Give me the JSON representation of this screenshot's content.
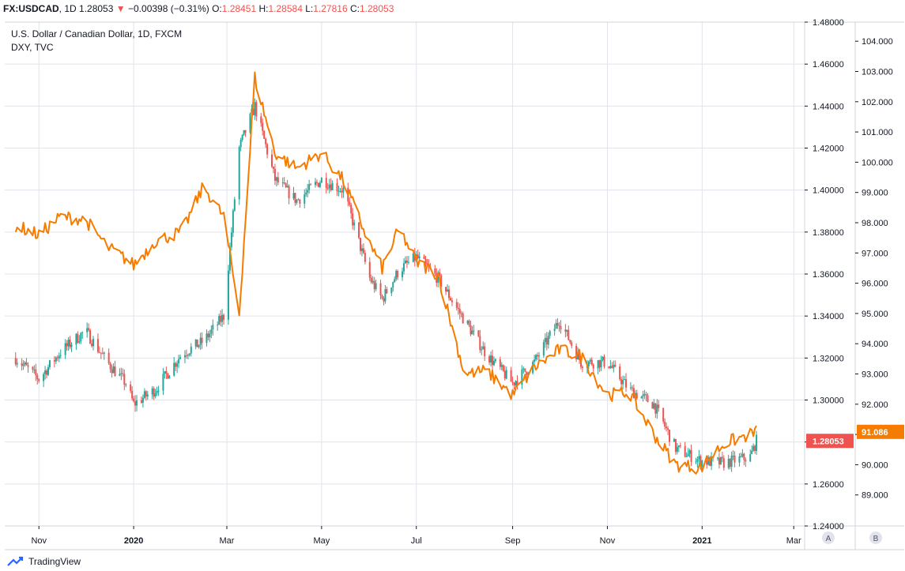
{
  "header": {
    "symbol": "FX:USDCAD",
    "interval": "1D",
    "last": "1.28053",
    "change": "−0.00398 (−0.31%)",
    "o_label": "O:",
    "o_value": "1.28451",
    "h_label": "H:",
    "h_value": "1.28584",
    "l_label": "L:",
    "l_value": "1.27816",
    "c_label": "C:",
    "c_value": "1.28053",
    "down_arrow": "▼"
  },
  "legend": {
    "main": "U.S. Dollar / Canadian Dollar, 1D, FXCM",
    "compare": "DXY, TVC"
  },
  "brand": "TradingView",
  "price_tags": {
    "usdcad": "1.28053",
    "dxy": "91.086"
  },
  "scale_buttons": {
    "a": "A",
    "b": "B"
  },
  "colors": {
    "up": "#26a69a",
    "down": "#ef5350",
    "dxy": "#f57c00",
    "grid": "#e0e3eb",
    "tag_usdcad": "#ef5350",
    "tag_dxy": "#f57c00"
  },
  "chart_data": {
    "type": "line",
    "x_ticks": [
      "Nov",
      "2020",
      "Mar",
      "May",
      "Jul",
      "Sep",
      "Nov",
      "2021",
      "Mar"
    ],
    "y_left_ticks": [
      "1.48000",
      "1.46000",
      "1.44000",
      "1.42000",
      "1.40000",
      "1.38000",
      "1.36000",
      "1.34000",
      "1.32000",
      "1.30000",
      "1.28000",
      "1.26000",
      "1.24000"
    ],
    "y_right_ticks": [
      "104.000",
      "103.000",
      "102.000",
      "101.000",
      "100.000",
      "99.000",
      "98.000",
      "97.000",
      "96.000",
      "95.000",
      "94.000",
      "93.000",
      "92.000",
      "91.000",
      "90.000",
      "89.000"
    ],
    "y_left_range": [
      1.24,
      1.48
    ],
    "y_right_range": [
      88.0,
      104.0
    ],
    "grid": true,
    "series": [
      {
        "name": "U.S. Dollar / Canadian Dollar, 1D, FXCM",
        "style": "candles",
        "axis": "left",
        "x": [
          "2019-10-17",
          "2019-11-01",
          "2019-11-15",
          "2019-12-01",
          "2019-12-15",
          "2019-12-27",
          "2020-01-01",
          "2020-01-15",
          "2020-02-01",
          "2020-02-15",
          "2020-02-28",
          "2020-03-09",
          "2020-03-19",
          "2020-04-01",
          "2020-04-15",
          "2020-05-01",
          "2020-05-15",
          "2020-06-01",
          "2020-06-09",
          "2020-06-20",
          "2020-07-01",
          "2020-07-15",
          "2020-08-01",
          "2020-08-15",
          "2020-09-01",
          "2020-09-15",
          "2020-10-01",
          "2020-10-15",
          "2020-11-01",
          "2020-11-15",
          "2020-12-01",
          "2020-12-15",
          "2020-12-31",
          "2021-01-15",
          "2021-02-01",
          "2021-02-05"
        ],
        "values": [
          1.32,
          1.31,
          1.323,
          1.333,
          1.318,
          1.308,
          1.298,
          1.305,
          1.322,
          1.328,
          1.34,
          1.42,
          1.44,
          1.405,
          1.395,
          1.405,
          1.4,
          1.358,
          1.348,
          1.362,
          1.368,
          1.358,
          1.338,
          1.322,
          1.308,
          1.318,
          1.338,
          1.318,
          1.318,
          1.305,
          1.298,
          1.277,
          1.271,
          1.27,
          1.273,
          1.2805
        ]
      },
      {
        "name": "DXY, TVC",
        "style": "line",
        "axis": "right",
        "x": [
          "2019-10-17",
          "2019-11-01",
          "2019-11-15",
          "2019-12-01",
          "2019-12-15",
          "2019-12-27",
          "2020-01-01",
          "2020-01-15",
          "2020-02-01",
          "2020-02-15",
          "2020-02-28",
          "2020-03-09",
          "2020-03-19",
          "2020-04-01",
          "2020-04-15",
          "2020-05-01",
          "2020-05-15",
          "2020-06-01",
          "2020-06-09",
          "2020-06-20",
          "2020-07-01",
          "2020-07-15",
          "2020-08-01",
          "2020-08-15",
          "2020-09-01",
          "2020-09-15",
          "2020-10-01",
          "2020-10-15",
          "2020-11-01",
          "2020-11-15",
          "2020-12-01",
          "2020-12-15",
          "2020-12-31",
          "2021-01-15",
          "2021-02-01",
          "2021-02-05"
        ],
        "values": [
          97.9,
          97.6,
          98.2,
          98.1,
          97.2,
          96.8,
          96.6,
          97.4,
          97.7,
          99.2,
          98.2,
          95.0,
          102.8,
          100.3,
          99.8,
          100.3,
          99.4,
          97.3,
          96.5,
          97.8,
          96.7,
          96.3,
          93.0,
          93.1,
          92.3,
          93.2,
          93.8,
          93.6,
          92.3,
          92.4,
          91.0,
          90.0,
          89.9,
          90.7,
          91.0,
          91.086
        ]
      }
    ]
  }
}
